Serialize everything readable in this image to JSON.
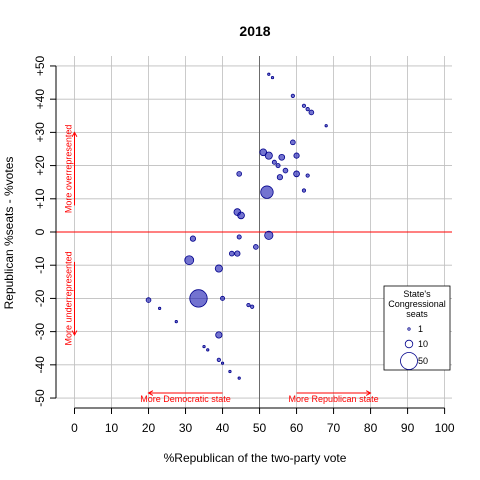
{
  "chart_data": {
    "type": "scatter",
    "title": "2018",
    "xlabel": "%Republican of the two-party vote",
    "ylabel": "Republican %seats - %votes",
    "xlim": [
      -5,
      102
    ],
    "ylim": [
      -53,
      53
    ],
    "x_ticks": [
      0,
      10,
      20,
      30,
      40,
      50,
      60,
      70,
      80,
      90,
      100
    ],
    "y_ticks": [
      -50,
      -40,
      -30,
      -20,
      -10,
      0,
      10,
      20,
      30,
      40,
      50
    ],
    "x_tick_labels": [
      "0",
      "10",
      "20",
      "30",
      "40",
      "50",
      "60",
      "70",
      "80",
      "90",
      "100"
    ],
    "y_tick_labels": [
      "-50",
      "-40",
      "-30",
      "-20",
      "-10",
      "0",
      "+10",
      "+20",
      "+30",
      "+40",
      "+50"
    ],
    "grid": true,
    "reference_lines": {
      "x": 50,
      "y": 0
    },
    "annotations": {
      "over": "More overrepresented",
      "under": "More underrepresented",
      "dem": "More Democratic state",
      "rep": "More Republican state"
    },
    "legend": {
      "position": "bottom-right",
      "title_lines": [
        "State's",
        "Congressional",
        "seats"
      ],
      "entries": [
        {
          "label": "1",
          "seats": 1
        },
        {
          "label": "10",
          "seats": 10
        },
        {
          "label": "50",
          "seats": 50
        }
      ]
    },
    "colors": {
      "point_fill": "#1515b0",
      "point_stroke": "#00008b",
      "reference": "#ff0000",
      "grid": "#bebebe",
      "annotation": "#ff0000"
    },
    "points": [
      {
        "x": 52.5,
        "y": 47.5,
        "seats": 1
      },
      {
        "x": 53.5,
        "y": 46.5,
        "seats": 1
      },
      {
        "x": 59,
        "y": 41,
        "seats": 2
      },
      {
        "x": 62,
        "y": 38,
        "seats": 2
      },
      {
        "x": 63,
        "y": 37,
        "seats": 2
      },
      {
        "x": 64,
        "y": 36,
        "seats": 4
      },
      {
        "x": 68,
        "y": 32,
        "seats": 1
      },
      {
        "x": 59,
        "y": 27,
        "seats": 4
      },
      {
        "x": 51,
        "y": 24,
        "seats": 8
      },
      {
        "x": 52.5,
        "y": 23,
        "seats": 9
      },
      {
        "x": 56,
        "y": 22.5,
        "seats": 6
      },
      {
        "x": 60,
        "y": 23,
        "seats": 5
      },
      {
        "x": 54,
        "y": 21,
        "seats": 3
      },
      {
        "x": 55,
        "y": 20,
        "seats": 3
      },
      {
        "x": 57,
        "y": 18.5,
        "seats": 4
      },
      {
        "x": 60,
        "y": 17.5,
        "seats": 6
      },
      {
        "x": 63,
        "y": 17,
        "seats": 2
      },
      {
        "x": 44.5,
        "y": 17.5,
        "seats": 4
      },
      {
        "x": 55.5,
        "y": 16.5,
        "seats": 5
      },
      {
        "x": 62,
        "y": 12.5,
        "seats": 2
      },
      {
        "x": 52,
        "y": 12,
        "seats": 27
      },
      {
        "x": 44,
        "y": 6,
        "seats": 8
      },
      {
        "x": 45,
        "y": 5,
        "seats": 8
      },
      {
        "x": 32,
        "y": -2,
        "seats": 5
      },
      {
        "x": 44.5,
        "y": -1.5,
        "seats": 3
      },
      {
        "x": 52.5,
        "y": -1,
        "seats": 12
      },
      {
        "x": 49,
        "y": -4.5,
        "seats": 4
      },
      {
        "x": 42.5,
        "y": -6.5,
        "seats": 4
      },
      {
        "x": 44,
        "y": -6.5,
        "seats": 5
      },
      {
        "x": 31,
        "y": -8.5,
        "seats": 14
      },
      {
        "x": 39,
        "y": -11,
        "seats": 9
      },
      {
        "x": 20,
        "y": -20.5,
        "seats": 4
      },
      {
        "x": 33.5,
        "y": -20,
        "seats": 53
      },
      {
        "x": 40,
        "y": -20,
        "seats": 3
      },
      {
        "x": 23,
        "y": -23,
        "seats": 1
      },
      {
        "x": 47,
        "y": -22,
        "seats": 2
      },
      {
        "x": 48,
        "y": -22.5,
        "seats": 2
      },
      {
        "x": 27.5,
        "y": -27,
        "seats": 1
      },
      {
        "x": 39,
        "y": -31,
        "seats": 7
      },
      {
        "x": 35,
        "y": -34.5,
        "seats": 1
      },
      {
        "x": 36,
        "y": -35.5,
        "seats": 1
      },
      {
        "x": 39,
        "y": -38.5,
        "seats": 2
      },
      {
        "x": 40,
        "y": -39.5,
        "seats": 1
      },
      {
        "x": 42,
        "y": -42,
        "seats": 1
      },
      {
        "x": 44.5,
        "y": -44,
        "seats": 1
      }
    ]
  }
}
